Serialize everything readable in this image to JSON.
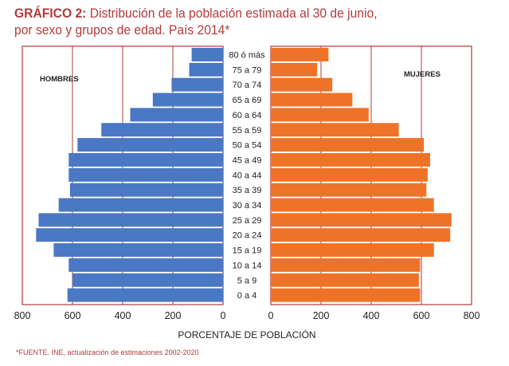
{
  "title_prefix": "GRÁFICO 2:",
  "title_line1": "Distribución de la población estimada al 30 de junio,",
  "title_line2": "por sexo y grupos de edad. País 2014*",
  "footnote": "*FUENTE. INE, actualización de estimaciones 2002-2020",
  "colors": {
    "men": "#4a78c4",
    "women": "#ee7328",
    "title": "#b23a3a",
    "frame": "#b23a3a"
  },
  "chart_data": {
    "type": "bar",
    "orientation": "horizontal-pyramid",
    "title": "Distribución de la población estimada al 30 de junio, por sexo y grupos de edad. País 2014*",
    "xlabel": "PORCENTAJE DE POBLACIÓN",
    "ylabel": "",
    "xlim": [
      0,
      800
    ],
    "x_ticks_left": [
      "800",
      "600",
      "400",
      "200",
      "0"
    ],
    "x_ticks_right": [
      "0",
      "200",
      "400",
      "600",
      "800"
    ],
    "grid_values": [
      200,
      400,
      600
    ],
    "categories": [
      "80 ó más",
      "75 a 79",
      "70 a 74",
      "65 a 69",
      "60 a 64",
      "55 a 59",
      "50 a 54",
      "45 a 49",
      "40 a 44",
      "35 a 39",
      "30 a 34",
      "25 a 29",
      "20 a 24",
      "15 a 19",
      "10 a 14",
      "5 a 9",
      "0 a 4"
    ],
    "series": [
      {
        "name": "HOMBRES",
        "side": "left",
        "values": [
          125,
          135,
          205,
          280,
          370,
          485,
          580,
          615,
          615,
          610,
          655,
          735,
          745,
          675,
          615,
          600,
          620
        ]
      },
      {
        "name": "MUJERES",
        "side": "right",
        "values": [
          230,
          185,
          245,
          325,
          390,
          510,
          610,
          635,
          625,
          620,
          650,
          720,
          715,
          650,
          595,
          590,
          595
        ]
      }
    ]
  }
}
